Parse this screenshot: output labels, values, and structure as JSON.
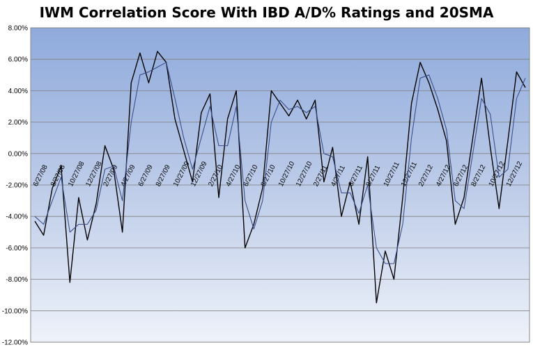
{
  "chart_data": {
    "type": "line",
    "title": "IWM Correlation Score With IBD A/D% Ratings and 20SMA",
    "xlabel": "",
    "ylabel": "",
    "ylim": [
      -0.12,
      0.08
    ],
    "yticks": [
      "8.00%",
      "6.00%",
      "4.00%",
      "2.00%",
      "0.00%",
      "-2.00%",
      "-4.00%",
      "-6.00%",
      "-8.00%",
      "-10.00%",
      "-12.00%"
    ],
    "ytick_values": [
      0.08,
      0.06,
      0.04,
      0.02,
      0.0,
      -0.02,
      -0.04,
      -0.06,
      -0.08,
      -0.1,
      -0.12
    ],
    "xticks": [
      "6/27/08",
      "8/27/08",
      "10/27/08",
      "12/27/08",
      "2/27/09",
      "4/27/09",
      "6/27/09",
      "8/27/09",
      "10/27/09",
      "12/27/09",
      "2/27/10",
      "4/27/10",
      "6/27/10",
      "8/27/10",
      "10/27/10",
      "12/27/10",
      "2/27/11",
      "4/27/11",
      "6/27/11",
      "8/27/11",
      "10/27/11",
      "12/27/11",
      "2/27/12",
      "4/27/12",
      "6/27/12",
      "8/27/12",
      "10/27/12",
      "12/27/12"
    ],
    "grid": true,
    "background": "vertical gradient, light blue",
    "series": [
      {
        "key": "score",
        "color": "#000000",
        "x": [
          "6/27/08",
          "7/27/08",
          "8/27/08",
          "9/27/08",
          "10/27/08",
          "11/27/08",
          "12/27/08",
          "1/27/09",
          "2/27/09",
          "3/27/09",
          "4/27/09",
          "5/27/09",
          "6/27/09",
          "7/27/09",
          "8/27/09",
          "9/27/09",
          "10/27/09",
          "11/27/09",
          "12/27/09",
          "1/27/10",
          "2/27/10",
          "3/27/10",
          "4/27/10",
          "5/27/10",
          "6/27/10",
          "7/27/10",
          "8/27/10",
          "9/27/10",
          "10/27/10",
          "11/27/10",
          "12/27/10",
          "1/27/11",
          "2/27/11",
          "3/27/11",
          "4/27/11",
          "5/27/11",
          "6/27/11",
          "7/27/11",
          "8/27/11",
          "9/27/11",
          "10/27/11",
          "11/27/11",
          "12/27/11",
          "1/27/12",
          "2/27/12",
          "3/27/12",
          "4/27/12",
          "5/27/12",
          "6/27/12",
          "7/27/12",
          "8/27/12",
          "9/27/12",
          "10/27/12",
          "11/27/12",
          "12/27/12",
          "1/27/13",
          "2/27/13"
        ],
        "values": [
          -0.043,
          -0.052,
          -0.022,
          -0.008,
          -0.082,
          -0.028,
          -0.055,
          -0.032,
          0.005,
          -0.01,
          -0.05,
          0.045,
          0.064,
          0.045,
          0.065,
          0.058,
          0.022,
          0.002,
          -0.018,
          0.026,
          0.038,
          -0.028,
          0.022,
          0.04,
          -0.06,
          -0.045,
          -0.022,
          0.04,
          0.032,
          0.024,
          0.034,
          0.022,
          0.034,
          -0.018,
          0.004,
          -0.04,
          -0.018,
          -0.045,
          -0.002,
          -0.095,
          -0.062,
          -0.08,
          -0.028,
          0.032,
          0.058,
          0.045,
          0.028,
          0.008,
          -0.045,
          -0.028,
          0.01,
          0.048,
          0.004,
          -0.035,
          0.008,
          0.052,
          0.042
        ]
      },
      {
        "key": "sma20",
        "color": "#3b4f8a",
        "x": [
          "6/27/08",
          "7/27/08",
          "8/27/08",
          "9/27/08",
          "10/27/08",
          "11/27/08",
          "12/27/08",
          "1/27/09",
          "2/27/09",
          "3/27/09",
          "4/27/09",
          "5/27/09",
          "6/27/09",
          "7/27/09",
          "8/27/09",
          "9/27/09",
          "10/27/09",
          "11/27/09",
          "12/27/09",
          "1/27/10",
          "2/27/10",
          "3/27/10",
          "4/27/10",
          "5/27/10",
          "6/27/10",
          "7/27/10",
          "8/27/10",
          "9/27/10",
          "10/27/10",
          "11/27/10",
          "12/27/10",
          "1/27/11",
          "2/27/11",
          "3/27/11",
          "4/27/11",
          "5/27/11",
          "6/27/11",
          "7/27/11",
          "8/27/11",
          "9/27/11",
          "10/27/11",
          "11/27/11",
          "12/27/11",
          "1/27/12",
          "2/27/12",
          "3/27/12",
          "4/27/12",
          "5/27/12",
          "6/27/12",
          "7/27/12",
          "8/27/12",
          "9/27/12",
          "10/27/12",
          "11/27/12",
          "12/27/12",
          "1/27/13",
          "2/27/13"
        ],
        "values": [
          -0.04,
          -0.045,
          -0.03,
          -0.015,
          -0.05,
          -0.045,
          -0.045,
          -0.036,
          -0.01,
          -0.008,
          -0.03,
          0.02,
          0.05,
          0.052,
          0.055,
          0.058,
          0.035,
          0.01,
          -0.01,
          0.01,
          0.03,
          0.005,
          0.005,
          0.03,
          -0.03,
          -0.048,
          -0.03,
          0.02,
          0.034,
          0.028,
          0.03,
          0.026,
          0.03,
          0.0,
          -0.002,
          -0.025,
          -0.025,
          -0.038,
          -0.02,
          -0.06,
          -0.07,
          -0.07,
          -0.045,
          0.01,
          0.048,
          0.05,
          0.035,
          0.015,
          -0.03,
          -0.035,
          0.0,
          0.035,
          0.025,
          -0.015,
          -0.01,
          0.035,
          0.048
        ]
      }
    ]
  }
}
